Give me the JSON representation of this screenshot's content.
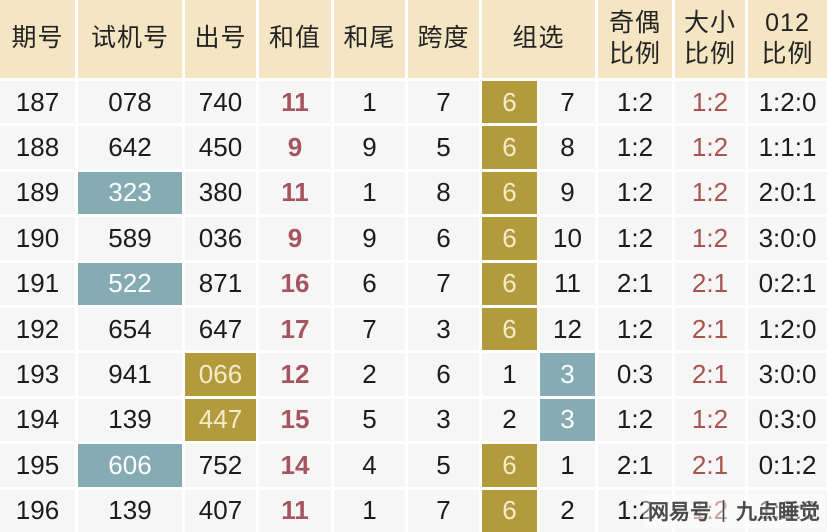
{
  "colors": {
    "header_bg": "#f4e5c3",
    "cell_bg": "#f6f6f6",
    "text": "#1c1c1c",
    "gold": "#b39b3d",
    "gold_text": "#f3ecc8",
    "teal": "#85abb3",
    "teal_text": "#fdfdfd",
    "red_sum": "#a65560",
    "red_ratio": "#a8544d"
  },
  "watermark": {
    "brand": "网易号",
    "divider": "｜",
    "author": "九点睡觉"
  },
  "chart_data": {
    "type": "table",
    "headers": {
      "period": "期号",
      "test": "试机号",
      "draw": "出号",
      "sum": "和值",
      "tail": "和尾",
      "span": "跨度",
      "group": "组选",
      "odd_even": [
        "奇偶",
        "比例"
      ],
      "big_small": [
        "大小",
        "比例"
      ],
      "r012": [
        "012",
        "比例"
      ]
    },
    "rows": [
      {
        "period": "187",
        "test": "078",
        "draw": "740",
        "sum": "11",
        "tail": "1",
        "span": "7",
        "g6": "6",
        "g3": "7",
        "odd_even": "1:2",
        "big_small": "1:2",
        "r012": "1:2:0",
        "test_hl": false,
        "draw_hl": false,
        "g6_hl": true,
        "g3_hl": false
      },
      {
        "period": "188",
        "test": "642",
        "draw": "450",
        "sum": "9",
        "tail": "9",
        "span": "5",
        "g6": "6",
        "g3": "8",
        "odd_even": "1:2",
        "big_small": "1:2",
        "r012": "1:1:1",
        "test_hl": false,
        "draw_hl": false,
        "g6_hl": true,
        "g3_hl": false
      },
      {
        "period": "189",
        "test": "323",
        "draw": "380",
        "sum": "11",
        "tail": "1",
        "span": "8",
        "g6": "6",
        "g3": "9",
        "odd_even": "1:2",
        "big_small": "1:2",
        "r012": "2:0:1",
        "test_hl": true,
        "draw_hl": false,
        "g6_hl": true,
        "g3_hl": false
      },
      {
        "period": "190",
        "test": "589",
        "draw": "036",
        "sum": "9",
        "tail": "9",
        "span": "6",
        "g6": "6",
        "g3": "10",
        "odd_even": "1:2",
        "big_small": "1:2",
        "r012": "3:0:0",
        "test_hl": false,
        "draw_hl": false,
        "g6_hl": true,
        "g3_hl": false
      },
      {
        "period": "191",
        "test": "522",
        "draw": "871",
        "sum": "16",
        "tail": "6",
        "span": "7",
        "g6": "6",
        "g3": "11",
        "odd_even": "2:1",
        "big_small": "2:1",
        "r012": "0:2:1",
        "test_hl": true,
        "draw_hl": false,
        "g6_hl": true,
        "g3_hl": false
      },
      {
        "period": "192",
        "test": "654",
        "draw": "647",
        "sum": "17",
        "tail": "7",
        "span": "3",
        "g6": "6",
        "g3": "12",
        "odd_even": "1:2",
        "big_small": "2:1",
        "r012": "1:2:0",
        "test_hl": false,
        "draw_hl": false,
        "g6_hl": true,
        "g3_hl": false
      },
      {
        "period": "193",
        "test": "941",
        "draw": "066",
        "sum": "12",
        "tail": "2",
        "span": "6",
        "g6": "1",
        "g3": "3",
        "odd_even": "0:3",
        "big_small": "2:1",
        "r012": "3:0:0",
        "test_hl": false,
        "draw_hl": true,
        "g6_hl": false,
        "g3_hl": true
      },
      {
        "period": "194",
        "test": "139",
        "draw": "447",
        "sum": "15",
        "tail": "5",
        "span": "3",
        "g6": "2",
        "g3": "3",
        "odd_even": "1:2",
        "big_small": "1:2",
        "r012": "0:3:0",
        "test_hl": false,
        "draw_hl": true,
        "g6_hl": false,
        "g3_hl": true
      },
      {
        "period": "195",
        "test": "606",
        "draw": "752",
        "sum": "14",
        "tail": "4",
        "span": "5",
        "g6": "6",
        "g3": "1",
        "odd_even": "2:1",
        "big_small": "2:1",
        "r012": "0:1:2",
        "test_hl": true,
        "draw_hl": false,
        "g6_hl": true,
        "g3_hl": false
      },
      {
        "period": "196",
        "test": "139",
        "draw": "407",
        "sum": "11",
        "tail": "1",
        "span": "7",
        "g6": "6",
        "g3": "2",
        "odd_even": "1:2",
        "big_small": "1:2",
        "r012": "1:2:0",
        "test_hl": false,
        "draw_hl": false,
        "g6_hl": true,
        "g3_hl": false
      }
    ]
  }
}
